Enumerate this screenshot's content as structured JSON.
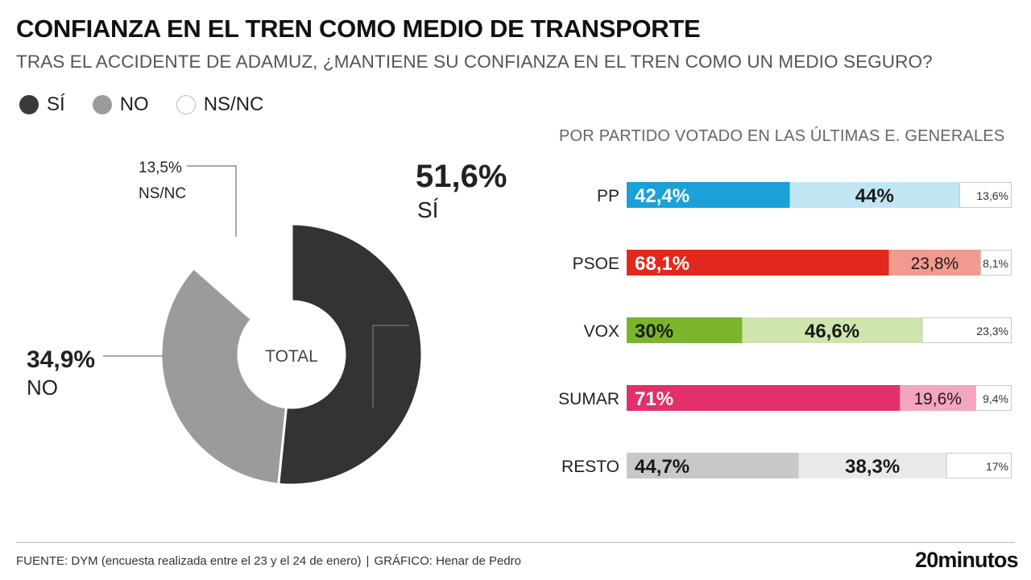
{
  "title": "CONFIANZA EN EL TREN COMO MEDIO DE TRANSPORTE",
  "subtitle": "TRAS EL ACCIDENTE DE ADAMUZ, ¿MANTIENE SU CONFIANZA EN EL TREN COMO UN MEDIO SEGURO?",
  "legend": [
    {
      "label": "SÍ",
      "color": "#3a3a3a"
    },
    {
      "label": "NO",
      "color": "#9b9b9b"
    },
    {
      "label": "NS/NC",
      "color": "#ffffff"
    }
  ],
  "bars_heading": "POR PARTIDO VOTADO EN LAS ÚLTIMAS E. GENERALES",
  "chart_data": [
    {
      "type": "pie",
      "center_label": "TOTAL",
      "slices": [
        {
          "label": "SÍ",
          "value": 51.6,
          "value_label": "51,6%",
          "color": "#333333"
        },
        {
          "label": "NO",
          "value": 34.9,
          "value_label": "34,9%",
          "color": "#9b9b9b"
        },
        {
          "label": "NS/NC",
          "value": 13.5,
          "value_label": "13,5%",
          "color": "#ffffff"
        }
      ]
    },
    {
      "type": "bar",
      "stacked": true,
      "orientation": "horizontal",
      "categories": [
        "PP",
        "PSOE",
        "VOX",
        "SUMAR",
        "RESTO"
      ],
      "series": [
        {
          "name": "SÍ",
          "values": [
            42.4,
            68.1,
            30,
            71,
            44.7
          ],
          "labels": [
            "42,4%",
            "68,1%",
            "30%",
            "71%",
            "44,7%"
          ]
        },
        {
          "name": "NO",
          "values": [
            44,
            23.8,
            46.6,
            19.6,
            38.3
          ],
          "labels": [
            "44%",
            "23,8%",
            "46,6%",
            "19,6%",
            "38,3%"
          ]
        },
        {
          "name": "NS/NC",
          "values": [
            13.6,
            8.1,
            23.3,
            9.4,
            17
          ],
          "labels": [
            "13,6%",
            "8,1%",
            "23,3%",
            "9,4%",
            "17%"
          ]
        }
      ],
      "colors": [
        {
          "yes": "#1ba0d8",
          "no": "#c2e5f4",
          "yes_text": "#ffffff",
          "no_text": "#1a1a1a"
        },
        {
          "yes": "#e3291f",
          "no": "#f29a90",
          "yes_text": "#ffffff",
          "no_text": "#1a1a1a"
        },
        {
          "yes": "#7ab52c",
          "no": "#cfe5ad",
          "yes_text": "#1a1a1a",
          "no_text": "#1a1a1a"
        },
        {
          "yes": "#e2306a",
          "no": "#f4a6be",
          "yes_text": "#ffffff",
          "no_text": "#1a1a1a"
        },
        {
          "yes": "#c8c8c8",
          "no": "#e9e9e9",
          "yes_text": "#1a1a1a",
          "no_text": "#1a1a1a"
        }
      ]
    }
  ],
  "footer": {
    "source": "FUENTE: DYM (encuesta realizada entre el 23 y el 24 de enero)",
    "separator": "|",
    "credit": "GRÁFICO: Henar de Pedro"
  },
  "brand": "20minutos"
}
